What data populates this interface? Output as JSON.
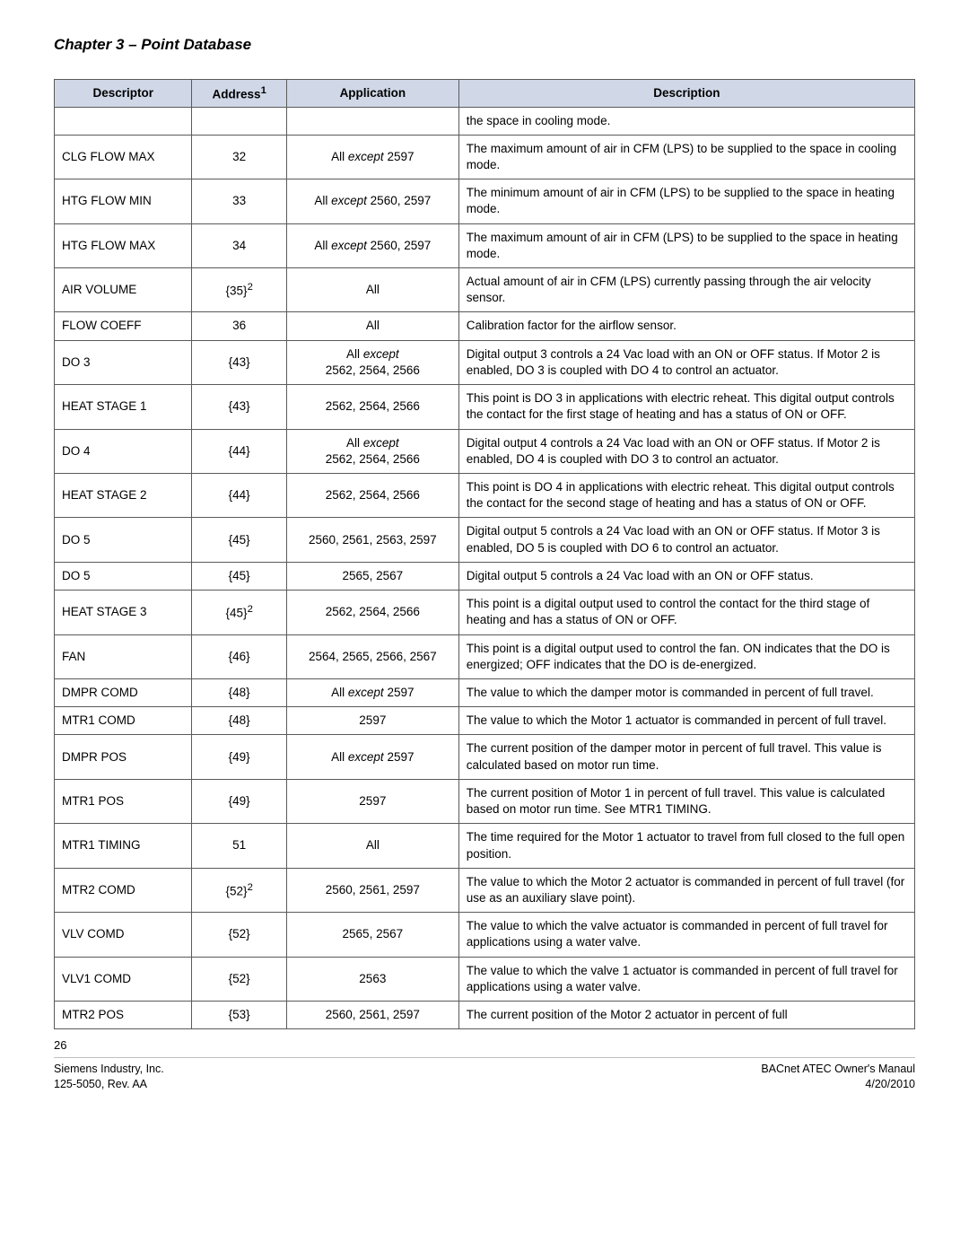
{
  "chapter_title": "Chapter 3 – Point Database",
  "table": {
    "headers": {
      "descriptor": "Descriptor",
      "address": "Address",
      "address_sup": "1",
      "application": "Application",
      "description": "Description"
    },
    "rows": [
      {
        "descriptor": "",
        "address": "",
        "app_plain": "",
        "description": "the space in cooling mode."
      },
      {
        "descriptor": "CLG FLOW MAX",
        "address": "32",
        "app_prefix": "All ",
        "app_em": "except",
        "app_suffix": " 2597",
        "description": "The maximum amount of air in CFM (LPS) to be supplied to the space in cooling mode."
      },
      {
        "descriptor": "HTG FLOW MIN",
        "address": "33",
        "app_prefix": "All ",
        "app_em": "except",
        "app_suffix": " 2560, 2597",
        "description": "The minimum amount of air in CFM (LPS) to be supplied to the space in heating mode."
      },
      {
        "descriptor": "HTG FLOW MAX",
        "address": "34",
        "app_prefix": "All ",
        "app_em": "except",
        "app_suffix": " 2560, 2597",
        "description": "The maximum amount of air in CFM (LPS) to be supplied to the space in heating mode."
      },
      {
        "descriptor": "AIR VOLUME",
        "address_base": "{35}",
        "address_sup": "2",
        "app_plain": "All",
        "description": "Actual amount of air in CFM (LPS) currently passing through the air velocity sensor."
      },
      {
        "descriptor": "FLOW COEFF",
        "address": "36",
        "app_plain": "All",
        "description": "Calibration factor for the airflow sensor."
      },
      {
        "descriptor": "DO 3",
        "address": "{43}",
        "app_prefix": "All ",
        "app_em": "except",
        "app_suffix_br": "2562, 2564, 2566",
        "description": "Digital output 3 controls a 24 Vac load with an ON or OFF status. If Motor 2 is enabled, DO 3 is coupled with DO 4 to control an actuator."
      },
      {
        "descriptor": "HEAT STAGE 1",
        "address": "{43}",
        "app_plain": "2562, 2564, 2566",
        "description": "This point is DO 3 in applications with electric reheat. This digital output controls the contact for the first stage of heating and has a status of ON or OFF."
      },
      {
        "descriptor": "DO 4",
        "address": "{44}",
        "app_prefix": "All ",
        "app_em": "except",
        "app_suffix_br": "2562, 2564, 2566",
        "description": "Digital output 4 controls a 24 Vac load with an ON or OFF status. If Motor 2 is enabled, DO 4 is coupled with DO 3 to control an actuator."
      },
      {
        "descriptor": "HEAT STAGE 2",
        "address": "{44}",
        "app_plain": "2562, 2564, 2566",
        "description": "This point is DO 4 in applications with electric reheat. This digital output controls the contact for the second stage of heating and has a status of ON or OFF."
      },
      {
        "descriptor": "DO 5",
        "address": "{45}",
        "app_plain": "2560, 2561, 2563, 2597",
        "description": "Digital output 5 controls a 24 Vac load with an ON or OFF status. If Motor 3 is enabled, DO 5 is coupled with DO 6 to control an actuator."
      },
      {
        "descriptor": "DO 5",
        "address": "{45}",
        "app_plain": "2565, 2567",
        "description": "Digital output 5 controls a 24 Vac load with an ON or OFF status."
      },
      {
        "descriptor": "HEAT STAGE 3",
        "address_base": "{45}",
        "address_sup": "2",
        "app_plain": "2562, 2564, 2566",
        "description": "This point is a digital output used to control the contact for the third stage of heating and has a status of ON or OFF."
      },
      {
        "descriptor": "FAN",
        "address": "{46}",
        "app_plain": "2564, 2565, 2566, 2567",
        "description": "This point is a digital output used to control the fan. ON indicates that the DO is energized; OFF indicates that the DO is de-energized."
      },
      {
        "descriptor": "DMPR COMD",
        "address": "{48}",
        "app_prefix": "All ",
        "app_em": "except",
        "app_suffix": " 2597",
        "description": "The value to which the damper motor is commanded in percent of full travel."
      },
      {
        "descriptor": "MTR1 COMD",
        "address": "{48}",
        "app_plain": "2597",
        "description": "The value to which the Motor 1 actuator is commanded in percent of full travel."
      },
      {
        "descriptor": "DMPR POS",
        "address": "{49}",
        "app_prefix": "All ",
        "app_em": "except",
        "app_suffix": " 2597",
        "description": "The current position of the damper motor in percent of full travel. This value is calculated based on motor run time."
      },
      {
        "descriptor": "MTR1 POS",
        "address": "{49}",
        "app_plain": "2597",
        "description": "The current position of Motor 1 in percent of full travel. This value is calculated based on motor run time. See MTR1 TIMING."
      },
      {
        "descriptor": "MTR1 TIMING",
        "address": "51",
        "app_plain": "All",
        "description": "The time required for the Motor 1 actuator to travel from full closed to the full open position."
      },
      {
        "descriptor": "MTR2 COMD",
        "address_base": "{52}",
        "address_sup": "2",
        "app_plain": "2560, 2561, 2597",
        "description": "The value to which the Motor 2 actuator is commanded in percent of full travel (for use as an auxiliary slave point)."
      },
      {
        "descriptor": "VLV COMD",
        "address": "{52}",
        "app_plain": "2565, 2567",
        "description": "The value to which the valve actuator is commanded in percent of full travel for applications using a water valve."
      },
      {
        "descriptor": "VLV1 COMD",
        "address": "{52}",
        "app_plain": "2563",
        "description": "The value to which the valve 1 actuator is commanded in percent of full travel for applications using a water valve."
      },
      {
        "descriptor": "MTR2 POS",
        "address": "{53}",
        "app_plain": "2560, 2561, 2597",
        "description": "The current position of the Motor 2 actuator in percent of full"
      }
    ]
  },
  "page_number": "26",
  "footer": {
    "left_line1": "Siemens Industry, Inc.",
    "left_line2": "125-5050, Rev. AA",
    "right_line1": "BACnet ATEC Owner's Manaul",
    "right_line2": "4/20/2010"
  }
}
